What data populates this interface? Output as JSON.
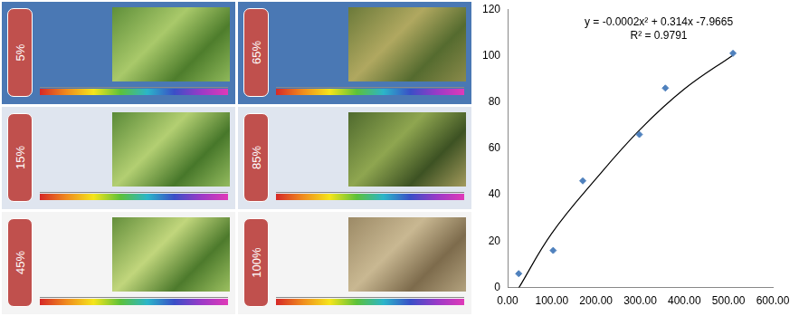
{
  "panels": [
    {
      "label": "5%"
    },
    {
      "label": "65%"
    },
    {
      "label": "15%"
    },
    {
      "label": "85%"
    },
    {
      "label": "45%"
    },
    {
      "label": "100%"
    }
  ],
  "chart_data": {
    "type": "scatter",
    "x": [
      25,
      103,
      170,
      298,
      357,
      510
    ],
    "values": [
      6,
      16,
      46,
      66,
      86,
      101
    ],
    "color": "#4f81bd",
    "marker": "diamond",
    "trendline": {
      "x": [
        25,
        100,
        200,
        300,
        400,
        510
      ],
      "values": [
        -0.2,
        23.4,
        46.9,
        68.2,
        85.6,
        100.2
      ],
      "color": "#000000",
      "line_style": "solid"
    },
    "annotations": [
      "y = -0.0002x² + 0.314x -7.9665",
      "R² = 0.9791"
    ],
    "xlim": [
      0,
      600
    ],
    "xticks": [
      {
        "value": 0,
        "label": "0.00"
      },
      {
        "value": 100,
        "label": "100.00"
      },
      {
        "value": 200,
        "label": "200.00"
      },
      {
        "value": 300,
        "label": "300.00"
      },
      {
        "value": 400,
        "label": "400.00"
      },
      {
        "value": 500,
        "label": "500.00"
      },
      {
        "value": 600,
        "label": "600.00"
      }
    ],
    "ylim": [
      0,
      120
    ],
    "yticks": [
      0,
      20,
      40,
      60,
      80,
      100,
      120
    ],
    "grid": false
  }
}
